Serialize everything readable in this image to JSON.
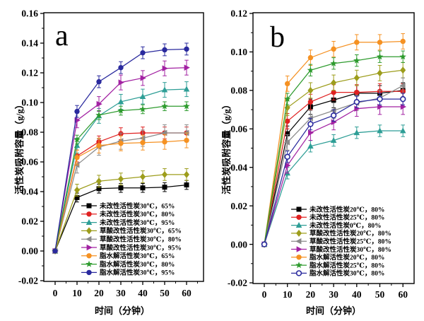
{
  "figure": {
    "background": "#ffffff",
    "description_visible_text_only": true
  },
  "chart_data": [
    {
      "id": "a",
      "type": "line",
      "panel_label": "a",
      "xlabel": "时间（分钟）",
      "ylabel": "活性炭吸附容量（g/g）",
      "x": [
        0,
        10,
        20,
        30,
        40,
        50,
        60
      ],
      "xticks": [
        0,
        10,
        20,
        30,
        40,
        50,
        60
      ],
      "xlim": [
        -5,
        67
      ],
      "ylim": [
        -0.02,
        0.16
      ],
      "yticks": [
        -0.02,
        0.0,
        0.02,
        0.04,
        0.06,
        0.08,
        0.1,
        0.12,
        0.14,
        0.16
      ],
      "grid": false,
      "legend_position": "inside lower-left, above x-axis",
      "error_bars": true,
      "series": [
        {
          "name": "未改性活性炭30℃，65%",
          "color": "#000000",
          "marker": "square",
          "err": 0.003,
          "values": [
            0,
            0.036,
            0.042,
            0.0425,
            0.0425,
            0.043,
            0.0445
          ]
        },
        {
          "name": "未改性活性炭30℃，80%",
          "color": "#e02121",
          "marker": "circle",
          "err": 0.004,
          "values": [
            0,
            0.064,
            0.0735,
            0.079,
            0.0795,
            0.0795,
            0.0795
          ]
        },
        {
          "name": "未改性活性炭30℃，95%",
          "color": "#2e9e96",
          "marker": "triangle-up",
          "err": 0.005,
          "values": [
            0,
            0.071,
            0.091,
            0.1005,
            0.104,
            0.1085,
            0.109
          ]
        },
        {
          "name": "草酸改性活性炭30℃，65%",
          "color": "#9d9d1c",
          "marker": "diamond",
          "err": 0.004,
          "values": [
            0,
            0.041,
            0.047,
            0.0485,
            0.05,
            0.0515,
            0.0515
          ]
        },
        {
          "name": "草酸改性活性炭30℃，80%",
          "color": "#8a8a8a",
          "marker": "triangle-left",
          "err": 0.0055,
          "values": [
            0,
            0.058,
            0.07,
            0.074,
            0.076,
            0.0795,
            0.0795
          ]
        },
        {
          "name": "草酸改性活性炭30℃，95%",
          "color": "#a221a2",
          "marker": "triangle-right",
          "err": 0.005,
          "values": [
            0,
            0.088,
            0.099,
            0.1135,
            0.1165,
            0.123,
            0.1235
          ]
        },
        {
          "name": "脂水解活性炭30℃，65%",
          "color": "#f59122",
          "marker": "circle",
          "err": 0.005,
          "values": [
            0,
            0.063,
            0.071,
            0.0725,
            0.073,
            0.0735,
            0.0745
          ]
        },
        {
          "name": "脂水解活性炭30℃，80%",
          "color": "#2e9b2e",
          "marker": "star",
          "err": 0.003,
          "values": [
            0,
            0.075,
            0.0915,
            0.0945,
            0.0955,
            0.0975,
            0.0975
          ]
        },
        {
          "name": "脂水解活性炭30℃，95%",
          "color": "#2a2a9e",
          "marker": "circle",
          "err": 0.004,
          "values": [
            0,
            0.094,
            0.114,
            0.1235,
            0.1335,
            0.1355,
            0.136
          ]
        }
      ]
    },
    {
      "id": "b",
      "type": "line",
      "panel_label": "b",
      "xlabel": "时间（分钟）",
      "ylabel": "活性炭吸附容量（g/g）",
      "x": [
        0,
        10,
        20,
        30,
        40,
        50,
        60
      ],
      "xticks": [
        0,
        10,
        20,
        30,
        40,
        50,
        60
      ],
      "xlim": [
        -5,
        67
      ],
      "ylim": [
        -0.02,
        0.12
      ],
      "yticks": [
        -0.02,
        0.0,
        0.02,
        0.04,
        0.06,
        0.08,
        0.1,
        0.12
      ],
      "grid": false,
      "legend_position": "inside lower-center, above x-axis",
      "error_bars": true,
      "series": [
        {
          "name": "未改性活性炭20℃，80%",
          "color": "#000000",
          "marker": "square",
          "err": 0.004,
          "values": [
            0,
            0.0575,
            0.0715,
            0.075,
            0.0785,
            0.0785,
            0.08
          ]
        },
        {
          "name": "未改性活性炭25℃，80%",
          "color": "#e02121",
          "marker": "circle",
          "err": 0.004,
          "values": [
            0,
            0.064,
            0.074,
            0.079,
            0.079,
            0.0795,
            0.0795
          ]
        },
        {
          "name": "未改性活性炭0℃，80%",
          "color": "#2e9e96",
          "marker": "triangle-up",
          "err": 0.003,
          "values": [
            0,
            0.037,
            0.051,
            0.054,
            0.058,
            0.059,
            0.059
          ]
        },
        {
          "name": "草酸改性活性炭20℃，80%",
          "color": "#9d9d1c",
          "marker": "diamond",
          "err": 0.004,
          "values": [
            0,
            0.071,
            0.08,
            0.084,
            0.0865,
            0.089,
            0.0905
          ]
        },
        {
          "name": "草酸改性活性炭25℃，80%",
          "color": "#8a8a8a",
          "marker": "triangle-left",
          "err": 0.004,
          "values": [
            0,
            0.053,
            0.0655,
            0.0695,
            0.0735,
            0.076,
            0.0825
          ]
        },
        {
          "name": "草酸改性活性炭30℃，80%",
          "color": "#a221a2",
          "marker": "triangle-right",
          "err": 0.004,
          "values": [
            0,
            0.041,
            0.058,
            0.0635,
            0.0705,
            0.0715,
            0.0715
          ]
        },
        {
          "name": "脂水解活性炭20℃，80%",
          "color": "#f59122",
          "marker": "circle",
          "err": 0.004,
          "values": [
            0,
            0.0835,
            0.097,
            0.1015,
            0.105,
            0.105,
            0.1055
          ]
        },
        {
          "name": "脂水解活性炭25℃，80%",
          "color": "#2e9b2e",
          "marker": "star",
          "err": 0.003,
          "values": [
            0,
            0.0755,
            0.0905,
            0.094,
            0.0955,
            0.0975,
            0.0975
          ]
        },
        {
          "name": "脂水解活性炭30℃，80%",
          "color": "#2a2a9e",
          "marker": "circle-open",
          "err": 0.003,
          "values": [
            0,
            0.0455,
            0.0625,
            0.067,
            0.074,
            0.0755,
            0.0755
          ]
        }
      ]
    }
  ]
}
